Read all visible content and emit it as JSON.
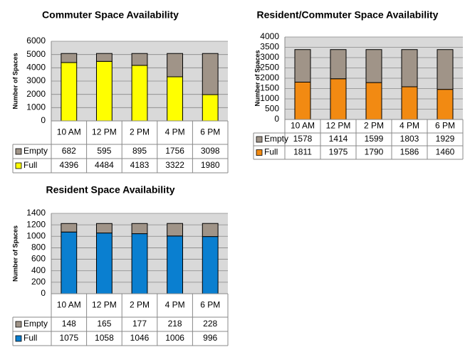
{
  "chart_data": [
    {
      "type": "bar",
      "stacked": true,
      "title": "Commuter Space Availability",
      "y_label": "Number of Spaces",
      "categories": [
        "10 AM",
        "12 PM",
        "2 PM",
        "4 PM",
        "6 PM"
      ],
      "series": [
        {
          "name": "Empty",
          "color": "#a09488",
          "values": [
            682,
            595,
            895,
            1756,
            3098
          ]
        },
        {
          "name": "Full",
          "color": "#ffff00",
          "values": [
            4396,
            4484,
            4183,
            3322,
            1980
          ]
        }
      ],
      "ylim": [
        0,
        6000
      ],
      "yticks": [
        0,
        1000,
        2000,
        3000,
        4000,
        5000,
        6000
      ],
      "grid": true
    },
    {
      "type": "bar",
      "stacked": true,
      "title": "Resident/Commuter Space Availability",
      "y_label": "Number of Spaces",
      "categories": [
        "10 AM",
        "12 PM",
        "2 PM",
        "4 PM",
        "6 PM"
      ],
      "series": [
        {
          "name": "Empty",
          "color": "#a09488",
          "values": [
            1578,
            1414,
            1599,
            1803,
            1929
          ]
        },
        {
          "name": "Full",
          "color": "#f28a12",
          "values": [
            1811,
            1975,
            1790,
            1586,
            1460
          ]
        }
      ],
      "ylim": [
        0,
        4000
      ],
      "yticks": [
        0,
        500,
        1000,
        1500,
        2000,
        2500,
        3000,
        3500,
        4000
      ],
      "grid": true
    },
    {
      "type": "bar",
      "stacked": true,
      "title": "Resident Space Availability",
      "y_label": "Number of Spaces",
      "categories": [
        "10 AM",
        "12 PM",
        "2 PM",
        "4 PM",
        "6 PM"
      ],
      "series": [
        {
          "name": "Empty",
          "color": "#a09488",
          "values": [
            148,
            165,
            177,
            218,
            228
          ]
        },
        {
          "name": "Full",
          "color": "#0a7fd0",
          "values": [
            1075,
            1058,
            1046,
            1006,
            996
          ]
        }
      ],
      "ylim": [
        0,
        1400
      ],
      "yticks": [
        0,
        200,
        400,
        600,
        800,
        1000,
        1200,
        1400
      ],
      "grid": true
    }
  ]
}
